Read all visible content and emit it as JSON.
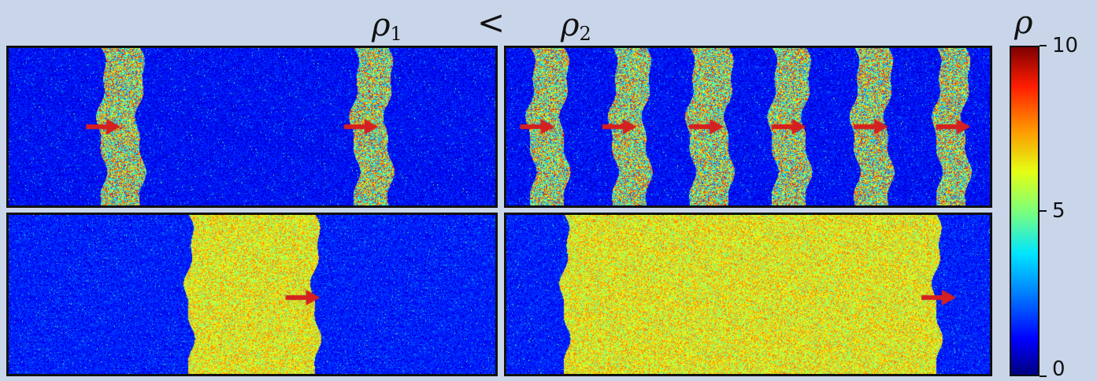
{
  "header": {
    "left_symbol": "ρ",
    "left_subscript": "1",
    "relation": "<",
    "right_symbol": "ρ",
    "right_subscript": "2"
  },
  "colorbar": {
    "label": "ρ",
    "min": 0,
    "max": 10,
    "ticks": [
      {
        "value": 10,
        "label": "10"
      },
      {
        "value": 5,
        "label": "5"
      },
      {
        "value": 0,
        "label": "0"
      }
    ],
    "colormap": "jet"
  },
  "panels": {
    "top_left": {
      "bands": [
        {
          "x0": 0.19,
          "x1": 0.27
        },
        {
          "x0": 0.71,
          "x1": 0.78
        }
      ],
      "arrows": [
        0.23,
        0.76
      ],
      "arrow_y": 0.5,
      "band_level": 5.5,
      "bg_level": 1.3,
      "band_noise": 3.5
    },
    "top_right": {
      "bands": [
        {
          "x0": 0.05,
          "x1": 0.12
        },
        {
          "x0": 0.22,
          "x1": 0.29
        },
        {
          "x0": 0.38,
          "x1": 0.46
        },
        {
          "x0": 0.55,
          "x1": 0.62
        },
        {
          "x0": 0.72,
          "x1": 0.79
        },
        {
          "x0": 0.89,
          "x1": 0.95
        }
      ],
      "arrows": [
        0.1,
        0.27,
        0.45,
        0.62,
        0.79,
        0.96
      ],
      "arrow_y": 0.5,
      "band_level": 5.5,
      "bg_level": 1.3,
      "band_noise": 3.5
    },
    "bottom_left": {
      "bands": [
        {
          "x0": 0.37,
          "x1": 0.63
        }
      ],
      "arrows": [
        0.64
      ],
      "arrow_y": 0.52,
      "band_level": 6.2,
      "bg_level": 1.5,
      "band_noise": 1.6
    },
    "bottom_right": {
      "bands": [
        {
          "x0": 0.12,
          "x1": 0.89
        }
      ],
      "arrows": [
        0.93
      ],
      "arrow_y": 0.52,
      "band_level": 6.2,
      "bg_level": 1.5,
      "band_noise": 1.6
    }
  },
  "colors": {
    "arrow": "#d42020",
    "background": "#c9d6ea"
  }
}
